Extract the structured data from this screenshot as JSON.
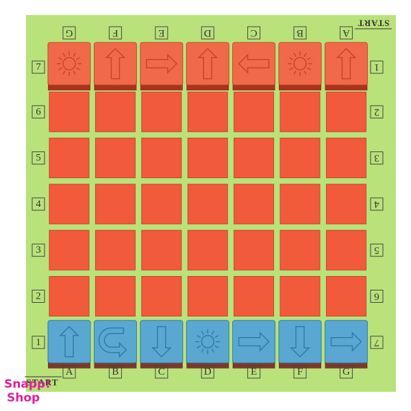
{
  "board": {
    "top_letters": [
      "G",
      "F",
      "E",
      "D",
      "C",
      "B",
      "A"
    ],
    "bottom_letters": [
      "A",
      "B",
      "C",
      "D",
      "E",
      "F",
      "G"
    ],
    "left_numbers": [
      "7",
      "6",
      "5",
      "4",
      "3",
      "2",
      "1"
    ],
    "right_numbers": [
      "1",
      "2",
      "3",
      "4",
      "5",
      "6",
      "7"
    ],
    "start_top": "START",
    "start_bottom": "START"
  },
  "watermark": {
    "line1": "Snapp!",
    "line2": "Shop"
  }
}
